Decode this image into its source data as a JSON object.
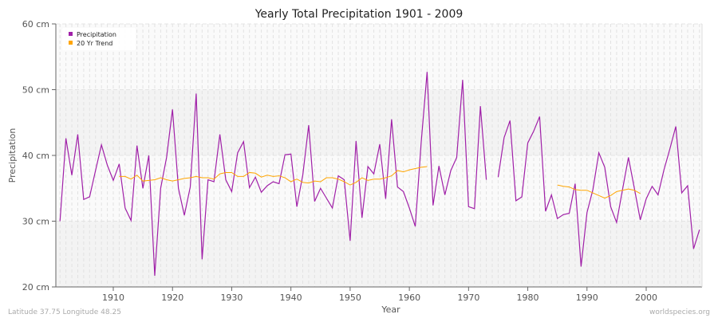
{
  "chart_data": {
    "type": "line",
    "title": "Yearly Total Precipitation 1901 - 2009",
    "xlabel": "Year",
    "ylabel": "Precipitation",
    "xlim": [
      1901,
      2009
    ],
    "ylim": [
      20,
      60
    ],
    "xticks": [
      1910,
      1920,
      1930,
      1940,
      1950,
      1960,
      1970,
      1980,
      1990,
      2000
    ],
    "yticks": [
      {
        "v": 20,
        "label": "20 cm"
      },
      {
        "v": 30,
        "label": "30 cm"
      },
      {
        "v": 40,
        "label": "40 cm"
      },
      {
        "v": 50,
        "label": "50 cm"
      },
      {
        "v": 60,
        "label": "60 cm"
      }
    ],
    "grid": true,
    "legend_position": "top-left",
    "series": [
      {
        "name": "Precipitation",
        "color": "#a020a8",
        "x_start": 1901,
        "values": [
          30.0,
          42.6,
          37.0,
          43.2,
          33.3,
          33.7,
          37.7,
          41.6,
          38.5,
          36.2,
          38.7,
          32.0,
          30.1,
          41.5,
          35.0,
          40.0,
          21.7,
          35.0,
          39.7,
          47.0,
          35.0,
          30.9,
          35.2,
          49.4,
          24.2,
          36.3,
          36.0,
          43.2,
          36.3,
          34.5,
          40.4,
          42.1,
          35.1,
          36.7,
          34.4,
          35.4,
          36.0,
          35.7,
          40.1,
          40.2,
          32.2,
          37.0,
          44.6,
          33.0,
          35.0,
          33.5,
          32.0,
          36.9,
          36.3,
          27.0,
          42.2,
          30.5,
          38.3,
          37.2,
          41.7,
          33.4,
          45.5,
          35.2,
          34.5,
          32.0,
          29.2,
          42.0,
          52.7,
          32.4,
          38.4,
          34.0,
          37.7,
          39.7,
          51.5,
          32.2,
          31.9,
          47.5,
          36.3,
          null,
          36.7,
          42.7,
          45.3,
          33.1,
          33.7,
          41.9,
          43.7,
          45.9,
          31.5,
          34.0,
          30.4,
          31.0,
          31.2,
          35.7,
          23.1,
          31.3,
          34.8,
          40.4,
          38.2,
          32.2,
          29.8,
          34.8,
          39.7,
          35.0,
          30.2,
          33.4,
          35.3,
          34.0,
          37.8,
          41.0,
          44.4,
          34.3,
          35.4,
          25.8,
          28.7
        ]
      },
      {
        "name": "20 Yr Trend",
        "color": "#ffa500",
        "x_start": 1911,
        "values": [
          36.8,
          36.8,
          36.4,
          37.0,
          36.1,
          36.2,
          36.3,
          36.6,
          36.3,
          36.1,
          36.3,
          36.5,
          36.6,
          36.8,
          36.6,
          36.6,
          36.4,
          37.2,
          37.4,
          37.4,
          36.8,
          36.8,
          37.4,
          37.3,
          36.7,
          37.0,
          36.8,
          36.9,
          36.6,
          36.0,
          36.4,
          35.9,
          35.8,
          36.1,
          36.0,
          36.6,
          36.6,
          36.4,
          36.0,
          35.5,
          35.9,
          36.6,
          36.2,
          36.4,
          36.4,
          36.6,
          36.9,
          37.7,
          37.5,
          37.8,
          38.0,
          38.2,
          38.3,
          null,
          null,
          null,
          null,
          null,
          null,
          null,
          null,
          null,
          null,
          null,
          null,
          null,
          null,
          null,
          null,
          null,
          null,
          null,
          null,
          null,
          35.5,
          35.3,
          35.2,
          34.8,
          34.7,
          34.7,
          34.3,
          33.9,
          33.5,
          33.9,
          34.5,
          34.7,
          34.9,
          34.7,
          34.2
        ]
      }
    ]
  },
  "footer": {
    "left": "Latitude 37.75 Longitude 48.25",
    "right": "worldspecies.org"
  }
}
